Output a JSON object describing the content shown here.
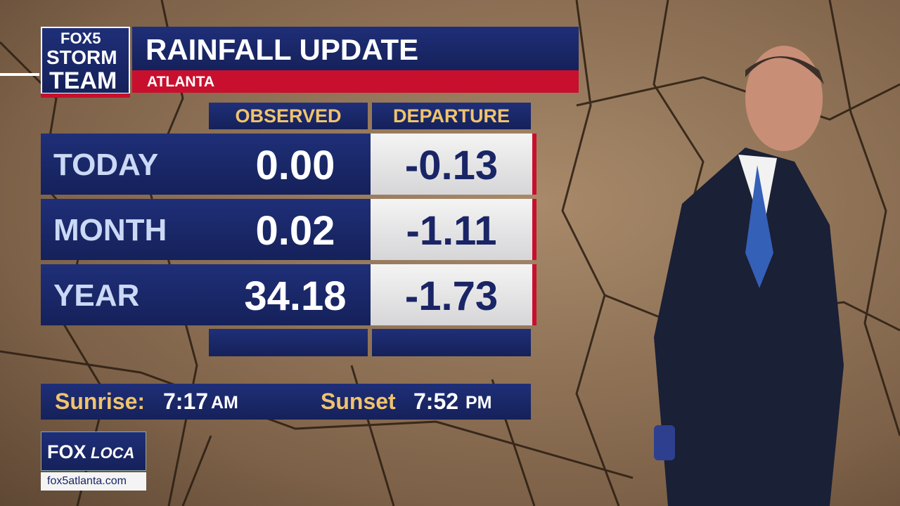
{
  "logo": {
    "line1": "FOX5",
    "line2": "STORM",
    "line3": "TEAM"
  },
  "header": {
    "title": "RAINFALL UPDATE",
    "subtitle": "ATLANTA"
  },
  "table": {
    "columns": [
      "OBSERVED",
      "DEPARTURE"
    ],
    "rows": [
      [
        "TODAY",
        "0.00",
        "-0.13"
      ],
      [
        "MONTH",
        "0.02",
        "-1.11"
      ],
      [
        "YEAR",
        "34.18",
        "-1.73"
      ]
    ]
  },
  "sun": {
    "sunrise_label": "Sunrise:",
    "sunrise_time": "7:17",
    "sunrise_ampm": "AM",
    "sunset_label": "Sunset",
    "sunset_time": "7:52",
    "sunset_ampm": "PM"
  },
  "footer": {
    "brand_a": "FOX",
    "brand_b": "LOCA",
    "url": "fox5atlanta.com"
  }
}
